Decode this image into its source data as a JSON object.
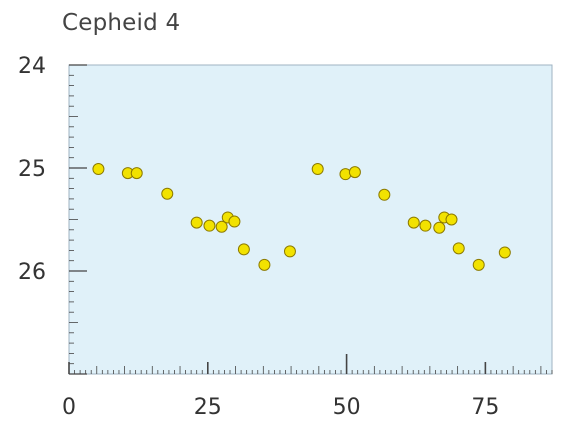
{
  "chart_data": {
    "type": "scatter",
    "title": "Cepheid 4",
    "xlabel": "",
    "ylabel": "",
    "xlim": [
      0,
      87
    ],
    "ylim": [
      27,
      24
    ],
    "y_inverted": true,
    "x_ticks": [
      0,
      25,
      50,
      75
    ],
    "x_tick_labels": [
      "0",
      "25",
      "50",
      "75"
    ],
    "y_ticks": [
      24,
      25,
      26
    ],
    "y_tick_labels": [
      "24",
      "25",
      "26"
    ],
    "grid": false,
    "legend": "none",
    "colors": {
      "plot_background": "#e0f1f9",
      "plot_border": "#9fb3c2",
      "point_fill": "#f2e200",
      "point_stroke": "#8c7a00",
      "tick": "#444444",
      "title": "#444444"
    },
    "series": [
      {
        "points": [
          {
            "x": 5.3,
            "y": 25.01
          },
          {
            "x": 10.6,
            "y": 25.05
          },
          {
            "x": 12.2,
            "y": 25.05
          },
          {
            "x": 17.7,
            "y": 25.25
          },
          {
            "x": 23.0,
            "y": 25.53
          },
          {
            "x": 25.3,
            "y": 25.56
          },
          {
            "x": 27.5,
            "y": 25.57
          },
          {
            "x": 28.6,
            "y": 25.48
          },
          {
            "x": 29.8,
            "y": 25.52
          },
          {
            "x": 31.5,
            "y": 25.79
          },
          {
            "x": 35.2,
            "y": 25.94
          },
          {
            "x": 39.8,
            "y": 25.81
          },
          {
            "x": 44.8,
            "y": 25.01
          },
          {
            "x": 49.8,
            "y": 25.06
          },
          {
            "x": 51.5,
            "y": 25.04
          },
          {
            "x": 56.8,
            "y": 25.26
          },
          {
            "x": 62.1,
            "y": 25.53
          },
          {
            "x": 64.2,
            "y": 25.56
          },
          {
            "x": 66.7,
            "y": 25.58
          },
          {
            "x": 67.6,
            "y": 25.48
          },
          {
            "x": 68.9,
            "y": 25.5
          },
          {
            "x": 70.2,
            "y": 25.78
          },
          {
            "x": 73.8,
            "y": 25.94
          },
          {
            "x": 78.5,
            "y": 25.82
          }
        ]
      }
    ]
  }
}
